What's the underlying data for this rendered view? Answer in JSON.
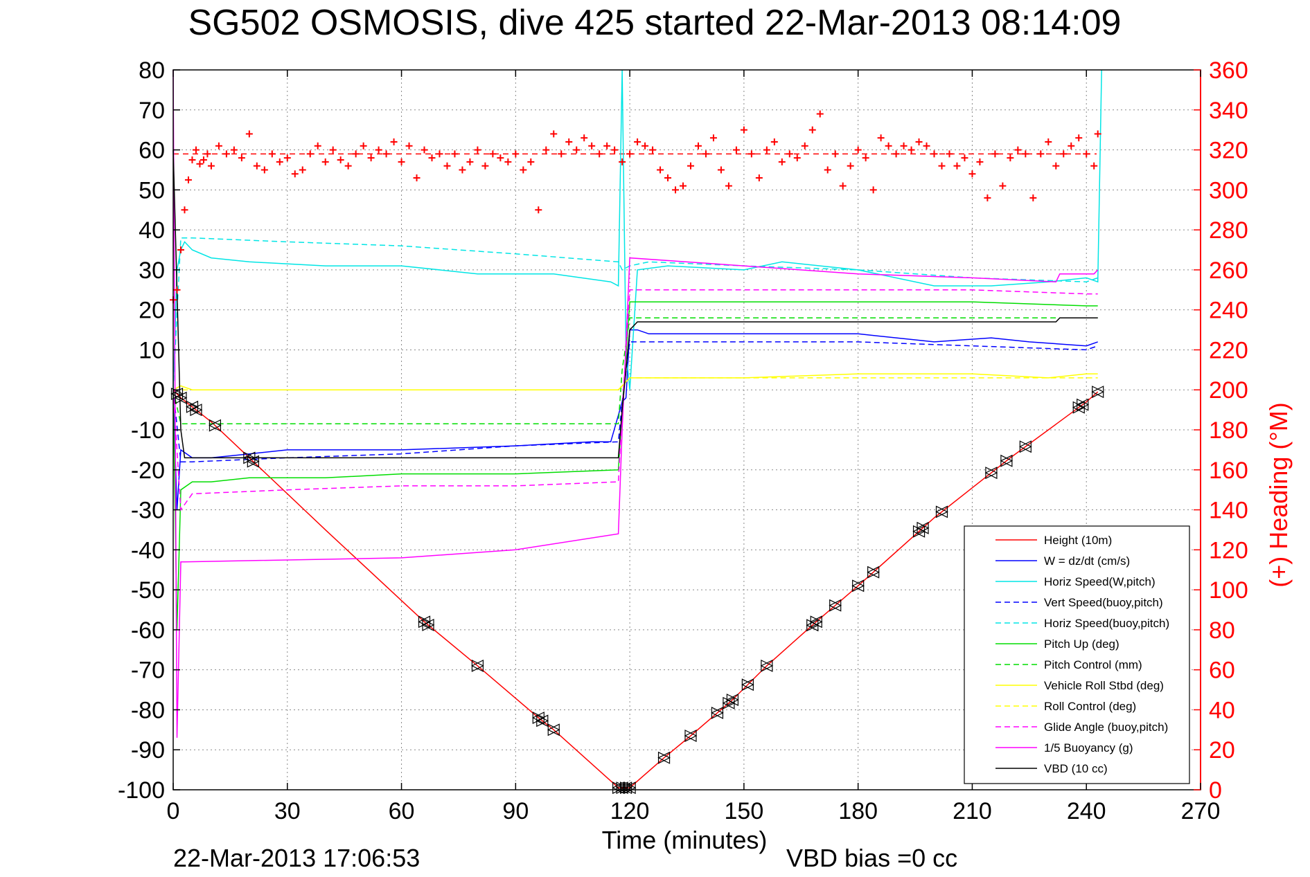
{
  "chart_data": {
    "type": "line",
    "title": "SG502 OSMOSIS, dive 425 started 22-Mar-2013 08:14:09",
    "xlabel": "Time (minutes)",
    "ylabel": "",
    "y2label": "(+) Heading (°M)",
    "footer_left": "22-Mar-2013 17:06:53",
    "footer_right": "VBD bias =0 cc",
    "xlim": [
      0,
      270
    ],
    "ylim": [
      -100,
      80
    ],
    "y2lim": [
      0,
      360
    ],
    "x_ticks": [
      "0",
      "30",
      "60",
      "90",
      "120",
      "150",
      "180",
      "210",
      "240",
      "270"
    ],
    "y_ticks": [
      "80",
      "70",
      "60",
      "50",
      "40",
      "30",
      "20",
      "10",
      "0",
      "-10",
      "-20",
      "-30",
      "-40",
      "-50",
      "-60",
      "-70",
      "-80",
      "-90",
      "-100"
    ],
    "y2_ticks": [
      "360",
      "340",
      "320",
      "300",
      "280",
      "260",
      "240",
      "220",
      "200",
      "180",
      "160",
      "140",
      "120",
      "100",
      "80",
      "60",
      "40",
      "20",
      "0"
    ],
    "grid": true,
    "legend_position": "bottom-right",
    "series": [
      {
        "name": "Height (10m)",
        "color": "#ff0000",
        "style": "solid",
        "x": [
          0,
          2,
          10,
          20,
          40,
          66,
          80,
          96,
          100,
          117,
          120,
          129,
          136,
          147,
          156,
          169,
          180,
          200,
          220,
          240,
          243
        ],
        "y": [
          0,
          -2,
          -8,
          -17,
          -35,
          -58,
          -69,
          -82,
          -85,
          -99.5,
          -99.5,
          -92,
          -86.5,
          -77.5,
          -69,
          -58,
          -49,
          -32,
          -17,
          -3,
          -0.5
        ]
      },
      {
        "name": "W = dz/dt (cm/s)",
        "color": "#0000ff",
        "style": "solid",
        "x": [
          0,
          1,
          2,
          5,
          10,
          20,
          30,
          60,
          90,
          110,
          115,
          118,
          119,
          120,
          122,
          125,
          150,
          180,
          200,
          215,
          225,
          240,
          243
        ],
        "y": [
          0,
          -30,
          -15,
          -17,
          -17,
          -16,
          -15,
          -15,
          -14,
          -13,
          -13,
          -3,
          -2,
          15,
          15,
          14,
          14,
          14,
          12,
          13,
          12,
          11,
          12
        ]
      },
      {
        "name": "Horiz Speed(W,pitch)",
        "color": "#00e5e5",
        "style": "solid",
        "x": [
          0,
          1,
          2,
          3,
          5,
          10,
          20,
          40,
          60,
          80,
          100,
          115,
          117,
          118,
          119,
          120,
          122,
          130,
          150,
          160,
          180,
          200,
          215,
          230,
          240,
          243,
          244
        ],
        "y": [
          0,
          30,
          35,
          37,
          35,
          33,
          32,
          31,
          31,
          29,
          29,
          27,
          26,
          80,
          10,
          0,
          30,
          31,
          30,
          32,
          30,
          26,
          26,
          27,
          28,
          27,
          80
        ]
      },
      {
        "name": "Vert Speed(buoy,pitch)",
        "color": "#0000ff",
        "style": "dashed",
        "x": [
          0,
          2,
          5,
          30,
          60,
          90,
          117,
          118,
          120,
          125,
          150,
          180,
          210,
          240,
          243
        ],
        "y": [
          0,
          -18,
          -18,
          -17,
          -16,
          -14,
          -13,
          -3,
          12,
          12,
          12,
          12,
          11,
          10,
          11
        ]
      },
      {
        "name": "Horiz Speed(buoy,pitch)",
        "color": "#00e5e5",
        "style": "dashed",
        "x": [
          0,
          2,
          5,
          30,
          60,
          90,
          117,
          118,
          120,
          125,
          150,
          180,
          210,
          240,
          243
        ],
        "y": [
          0,
          38,
          38,
          37,
          36,
          34,
          32,
          30,
          31,
          32,
          31,
          30,
          28,
          27,
          28
        ]
      },
      {
        "name": "Pitch Up (deg)",
        "color": "#00dd00",
        "style": "solid",
        "x": [
          0,
          1,
          2,
          5,
          10,
          20,
          40,
          60,
          90,
          117,
          118,
          120,
          125,
          150,
          180,
          210,
          240,
          243
        ],
        "y": [
          0,
          -60,
          -25,
          -23,
          -23,
          -22,
          -22,
          -21,
          -21,
          -20,
          -5,
          22,
          22,
          22,
          22,
          22,
          21,
          21
        ]
      },
      {
        "name": "Pitch Control (mm)",
        "color": "#00dd00",
        "style": "dashed",
        "x": [
          0,
          2,
          5,
          117,
          118,
          120,
          243
        ],
        "y": [
          0,
          -8.5,
          -8.5,
          -8.5,
          5,
          18,
          18
        ]
      },
      {
        "name": "Vehicle Roll Stbd (deg)",
        "color": "#ffff00",
        "style": "solid",
        "x": [
          0,
          2,
          5,
          30,
          60,
          90,
          117,
          120,
          125,
          150,
          180,
          210,
          230,
          240,
          243
        ],
        "y": [
          0,
          1,
          0,
          0,
          0,
          0,
          0,
          3,
          3,
          3,
          4,
          4,
          3,
          4,
          4
        ]
      },
      {
        "name": "Roll Control (deg)",
        "color": "#ffff00",
        "style": "dashed",
        "x": [
          0,
          2,
          117,
          120,
          243
        ],
        "y": [
          0,
          0,
          0,
          3,
          3
        ]
      },
      {
        "name": "Glide Angle (buoy,pitch)",
        "color": "#ff00ff",
        "style": "dashed",
        "x": [
          0,
          2,
          5,
          30,
          60,
          90,
          117,
          118,
          120,
          125,
          150,
          180,
          210,
          240,
          243
        ],
        "y": [
          0,
          -30,
          -26,
          -25,
          -24,
          -24,
          -23,
          -5,
          25,
          25,
          25,
          25,
          25,
          24,
          24
        ]
      },
      {
        "name": "1/5 Buoyancy (g)",
        "color": "#ff00ff",
        "style": "solid",
        "x": [
          0,
          1,
          2,
          3,
          60,
          90,
          117,
          118,
          120,
          150,
          180,
          210,
          232,
          233,
          242,
          243
        ],
        "y": [
          80,
          -87,
          -43,
          -43,
          -42,
          -40,
          -36,
          -10,
          33,
          31,
          29,
          28,
          27,
          29,
          29,
          30
        ]
      },
      {
        "name": "VBD (10 cc)",
        "color": "#000000",
        "style": "solid",
        "x": [
          0,
          2,
          3,
          117,
          118,
          120,
          122,
          232,
          233,
          243
        ],
        "y": [
          60,
          -10,
          -17,
          -17,
          -5,
          15,
          17,
          17,
          18,
          18
        ]
      }
    ],
    "heading": {
      "name": "(+) Heading",
      "color": "#ff0000",
      "axis": "right",
      "x": [
        0,
        1,
        2,
        3,
        4,
        5,
        6,
        7,
        8,
        9,
        10,
        12,
        14,
        16,
        18,
        20,
        22,
        24,
        26,
        28,
        30,
        32,
        34,
        36,
        38,
        40,
        42,
        44,
        46,
        48,
        50,
        52,
        54,
        56,
        58,
        60,
        62,
        64,
        66,
        68,
        70,
        72,
        74,
        76,
        78,
        80,
        82,
        84,
        86,
        88,
        90,
        92,
        94,
        96,
        98,
        100,
        102,
        104,
        106,
        108,
        110,
        112,
        114,
        116,
        118,
        120,
        122,
        124,
        126,
        128,
        130,
        132,
        134,
        136,
        138,
        140,
        142,
        144,
        146,
        148,
        150,
        152,
        154,
        156,
        158,
        160,
        162,
        164,
        166,
        168,
        170,
        172,
        174,
        176,
        178,
        180,
        182,
        184,
        186,
        188,
        190,
        192,
        194,
        196,
        198,
        200,
        202,
        204,
        206,
        208,
        210,
        212,
        214,
        216,
        218,
        220,
        222,
        224,
        226,
        228,
        230,
        232,
        234,
        236,
        238,
        240,
        242,
        243
      ],
      "y": [
        245,
        250,
        270,
        290,
        305,
        315,
        320,
        313,
        315,
        318,
        312,
        322,
        318,
        320,
        316,
        328,
        312,
        310,
        318,
        314,
        316,
        308,
        310,
        318,
        322,
        314,
        320,
        315,
        312,
        318,
        322,
        316,
        320,
        318,
        324,
        314,
        322,
        306,
        320,
        316,
        318,
        312,
        318,
        310,
        314,
        320,
        312,
        318,
        316,
        314,
        318,
        310,
        314,
        290,
        320,
        328,
        318,
        324,
        320,
        326,
        322,
        318,
        322,
        320,
        314,
        318,
        324,
        322,
        320,
        310,
        306,
        300,
        302,
        312,
        322,
        318,
        326,
        310,
        302,
        320,
        330,
        318,
        306,
        320,
        324,
        314,
        318,
        316,
        322,
        330,
        338,
        310,
        318,
        302,
        312,
        320,
        316,
        300,
        326,
        322,
        318,
        322,
        320,
        324,
        322,
        318,
        312,
        318,
        312,
        316,
        308,
        314,
        296,
        318,
        302,
        316,
        320,
        318,
        296,
        318,
        324,
        312,
        318,
        322,
        326,
        318,
        312,
        328
      ]
    },
    "heading_mean": 318,
    "marker_times": [
      1,
      2,
      5,
      6,
      11,
      20,
      21,
      66,
      67,
      80,
      96,
      97,
      100,
      117,
      118,
      119,
      120,
      129,
      136,
      143,
      146,
      147,
      151,
      156,
      168,
      169,
      174,
      180,
      184,
      196,
      197,
      202,
      215,
      219,
      224,
      238,
      239,
      243
    ]
  }
}
